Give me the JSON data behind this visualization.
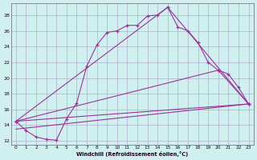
{
  "xlabel": "Windchill (Refroidissement éolien,°C)",
  "background_color": "#d0f0f0",
  "grid_color": "#b0b0cc",
  "line_color": "#993399",
  "xlim": [
    -0.5,
    23.5
  ],
  "ylim": [
    11.5,
    29.5
  ],
  "yticks": [
    12,
    14,
    16,
    18,
    20,
    22,
    24,
    26,
    28
  ],
  "xticks": [
    0,
    1,
    2,
    3,
    4,
    5,
    6,
    7,
    8,
    9,
    10,
    11,
    12,
    13,
    14,
    15,
    16,
    17,
    18,
    19,
    20,
    21,
    22,
    23
  ],
  "series1_x": [
    0,
    1,
    2,
    3,
    4,
    5,
    6,
    7,
    8,
    9,
    10,
    11,
    12,
    13,
    14,
    15,
    16,
    17,
    18,
    19,
    20,
    21,
    22,
    23
  ],
  "series1_y": [
    14.5,
    13.3,
    12.5,
    12.2,
    12.1,
    14.8,
    16.8,
    21.5,
    24.2,
    25.8,
    26.0,
    26.7,
    26.7,
    27.9,
    28.0,
    29.0,
    26.5,
    26.0,
    24.5,
    22.0,
    21.0,
    20.5,
    18.8,
    16.7
  ],
  "series2_x": [
    0,
    15,
    23
  ],
  "series2_y": [
    14.5,
    29.0,
    16.7
  ],
  "series3_x": [
    0,
    20,
    23
  ],
  "series3_y": [
    14.5,
    21.0,
    16.7
  ],
  "series4_x": [
    0,
    23
  ],
  "series4_y": [
    14.5,
    16.7
  ],
  "series5_x": [
    0,
    23
  ],
  "series5_y": [
    13.5,
    16.7
  ]
}
